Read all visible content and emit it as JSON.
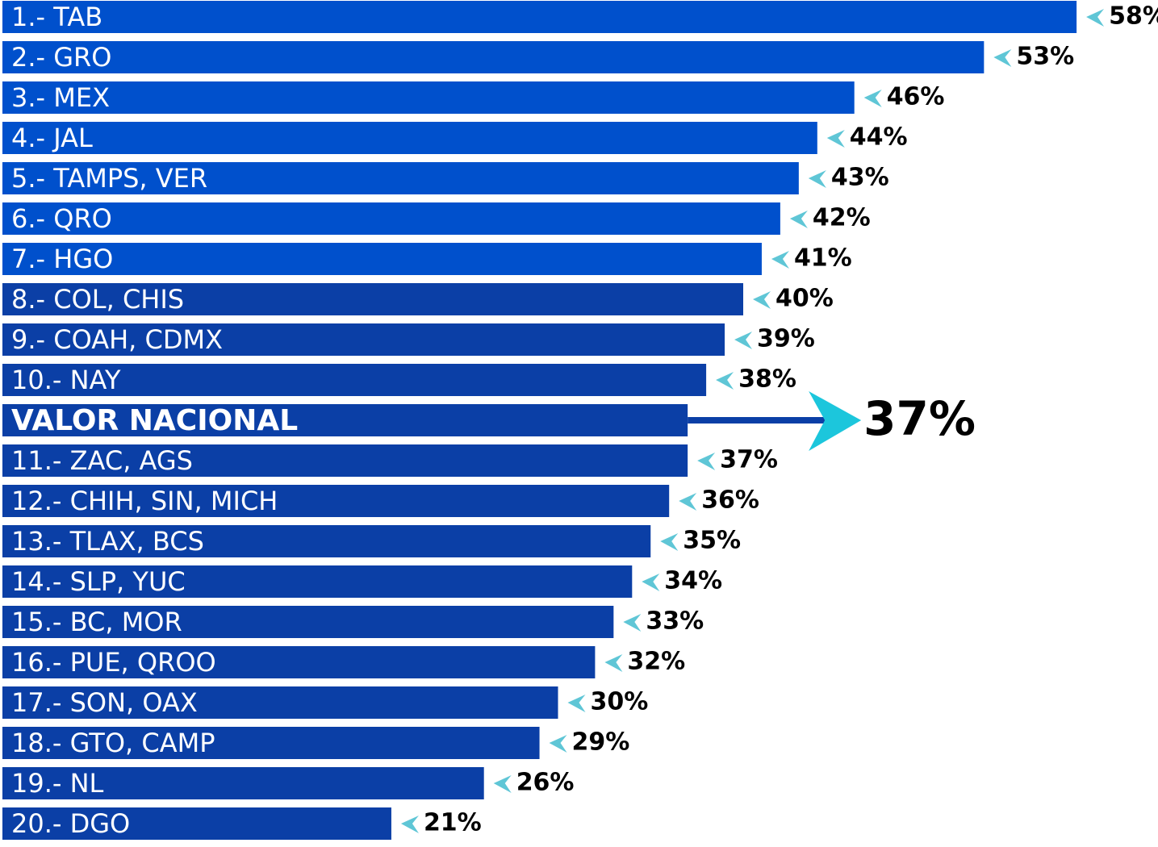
{
  "chart_data": {
    "type": "bar",
    "orientation": "horizontal",
    "categories": [
      "1.- TAB",
      "2.- GRO",
      "3.- MEX",
      "4.- JAL",
      "5.- TAMPS, VER",
      "6.- QRO",
      "7.- HGO",
      "8.- COL, CHIS",
      "9.- COAH, CDMX",
      "10.- NAY",
      "11.- ZAC, AGS",
      "12.- CHIH, SIN, MICH",
      "13.- TLAX, BCS",
      "14.- SLP, YUC",
      "15.- BC, MOR",
      "16.- PUE, QROO",
      "17.- SON, OAX",
      "18.- GTO, CAMP",
      "19.- NL",
      "20.- DGO"
    ],
    "values": [
      58,
      53,
      46,
      44,
      43,
      42,
      41,
      40,
      39,
      38,
      37,
      36,
      35,
      34,
      33,
      32,
      30,
      29,
      26,
      21
    ],
    "value_labels": [
      "58%",
      "53%",
      "46%",
      "44%",
      "43%",
      "42%",
      "41%",
      "40%",
      "39%",
      "38%",
      "37%",
      "36%",
      "35%",
      "34%",
      "33%",
      "32%",
      "30%",
      "29%",
      "26%",
      "21%"
    ],
    "colors": [
      "#0050cc",
      "#0050cc",
      "#0050cc",
      "#0050cc",
      "#0050cc",
      "#0050cc",
      "#0050cc",
      "#0b3fa6",
      "#0b3fa6",
      "#0b3fa6",
      "#0b3fa6",
      "#0b3fa6",
      "#0b3fa6",
      "#0b3fa6",
      "#0b3fa6",
      "#0b3fa6",
      "#0b3fa6",
      "#0b3fa6",
      "#0b3fa6",
      "#0b3fa6"
    ],
    "reference": {
      "label": "VALOR NACIONAL",
      "value": 37,
      "value_label": "37%",
      "color": "#0b3fa6"
    },
    "xlim": [
      0,
      60
    ]
  }
}
